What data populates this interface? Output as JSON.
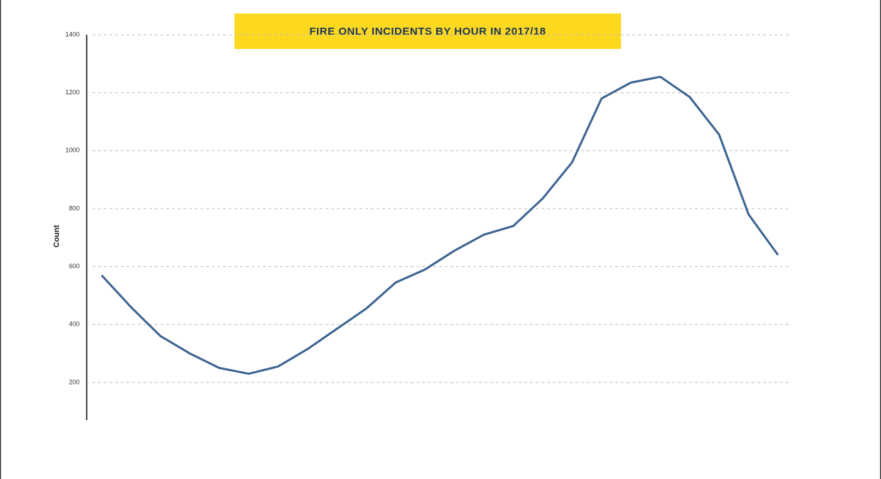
{
  "chart_data": {
    "type": "line",
    "title": "FIRE ONLY INCIDENTS BY HOUR IN 2017/18",
    "ylabel": "Count",
    "categories": [
      null,
      null,
      null,
      null,
      null,
      null,
      null,
      null,
      null,
      null,
      null,
      null,
      null,
      null,
      null,
      null,
      null,
      null,
      null,
      null,
      null,
      null,
      null,
      null
    ],
    "values": [
      570,
      460,
      360,
      300,
      250,
      230,
      255,
      315,
      385,
      455,
      545,
      590,
      655,
      710,
      740,
      835,
      960,
      1180,
      1235,
      1255,
      1185,
      1055,
      780,
      640
    ],
    "color": "#3d6491",
    "ylim": [
      70,
      1400
    ],
    "yticks": [
      200,
      400,
      600,
      800,
      1000,
      1200,
      1400
    ],
    "grid": true
  }
}
